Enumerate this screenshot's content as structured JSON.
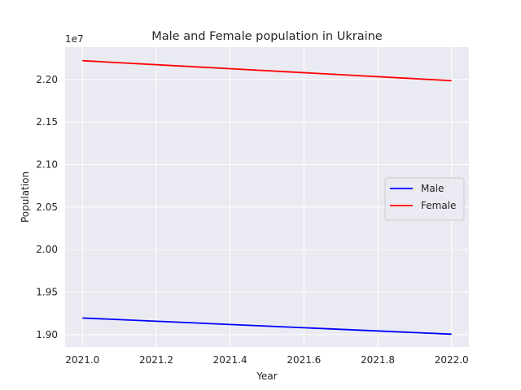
{
  "chart_data": {
    "type": "line",
    "title": "Male and Female population in Ukraine",
    "xlabel": "Year",
    "ylabel": "Population",
    "y_offset_label": "1e7",
    "x": [
      2021,
      2022
    ],
    "series": [
      {
        "name": "Male",
        "color": "#0000ff",
        "values": [
          19195000,
          19005000
        ]
      },
      {
        "name": "Female",
        "color": "#ff0000",
        "values": [
          22220000,
          21985000
        ]
      }
    ],
    "xlim": [
      2020.953,
      2022.047
    ],
    "ylim": [
      18855000,
      22380000
    ],
    "x_ticks": [
      2021.0,
      2021.2,
      2021.4,
      2021.6,
      2021.8,
      2022.0
    ],
    "x_tick_labels": [
      "2021.0",
      "2021.2",
      "2021.4",
      "2021.6",
      "2021.8",
      "2022.0"
    ],
    "y_ticks": [
      19000000,
      19500000,
      20000000,
      20500000,
      21000000,
      21500000,
      22000000
    ],
    "y_tick_labels": [
      "1.90",
      "1.95",
      "2.00",
      "2.05",
      "2.10",
      "2.15",
      "2.20"
    ],
    "grid": true,
    "legend_position": "center-right",
    "background_color": "#eaeaf2",
    "grid_color": "#ffffff"
  }
}
